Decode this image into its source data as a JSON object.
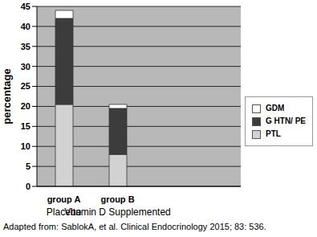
{
  "chart_data": {
    "type": "bar",
    "stacked": true,
    "categories": [
      "group A",
      "group B"
    ],
    "annotations": [
      "Placebo",
      "Vitamin D Supplemented"
    ],
    "caption": "Adapted from: SablokA, et al. Clinical Endocrinology 2015; 83: 536.",
    "y_label": "percentage",
    "series": [
      {
        "name": "PTL",
        "color": "#d2d2d2",
        "values": [
          20.5,
          8
        ]
      },
      {
        "name": "G HTN/ PE",
        "color": "#3c3c3c",
        "values": [
          21.5,
          11.5
        ]
      },
      {
        "name": "GDM",
        "color": "#ffffff",
        "values": [
          2,
          1
        ]
      }
    ],
    "ylim": [
      0,
      45
    ],
    "yticks": [
      0,
      5,
      10,
      15,
      20,
      25,
      30,
      35,
      40,
      45
    ],
    "grid": true,
    "legend": "right"
  }
}
